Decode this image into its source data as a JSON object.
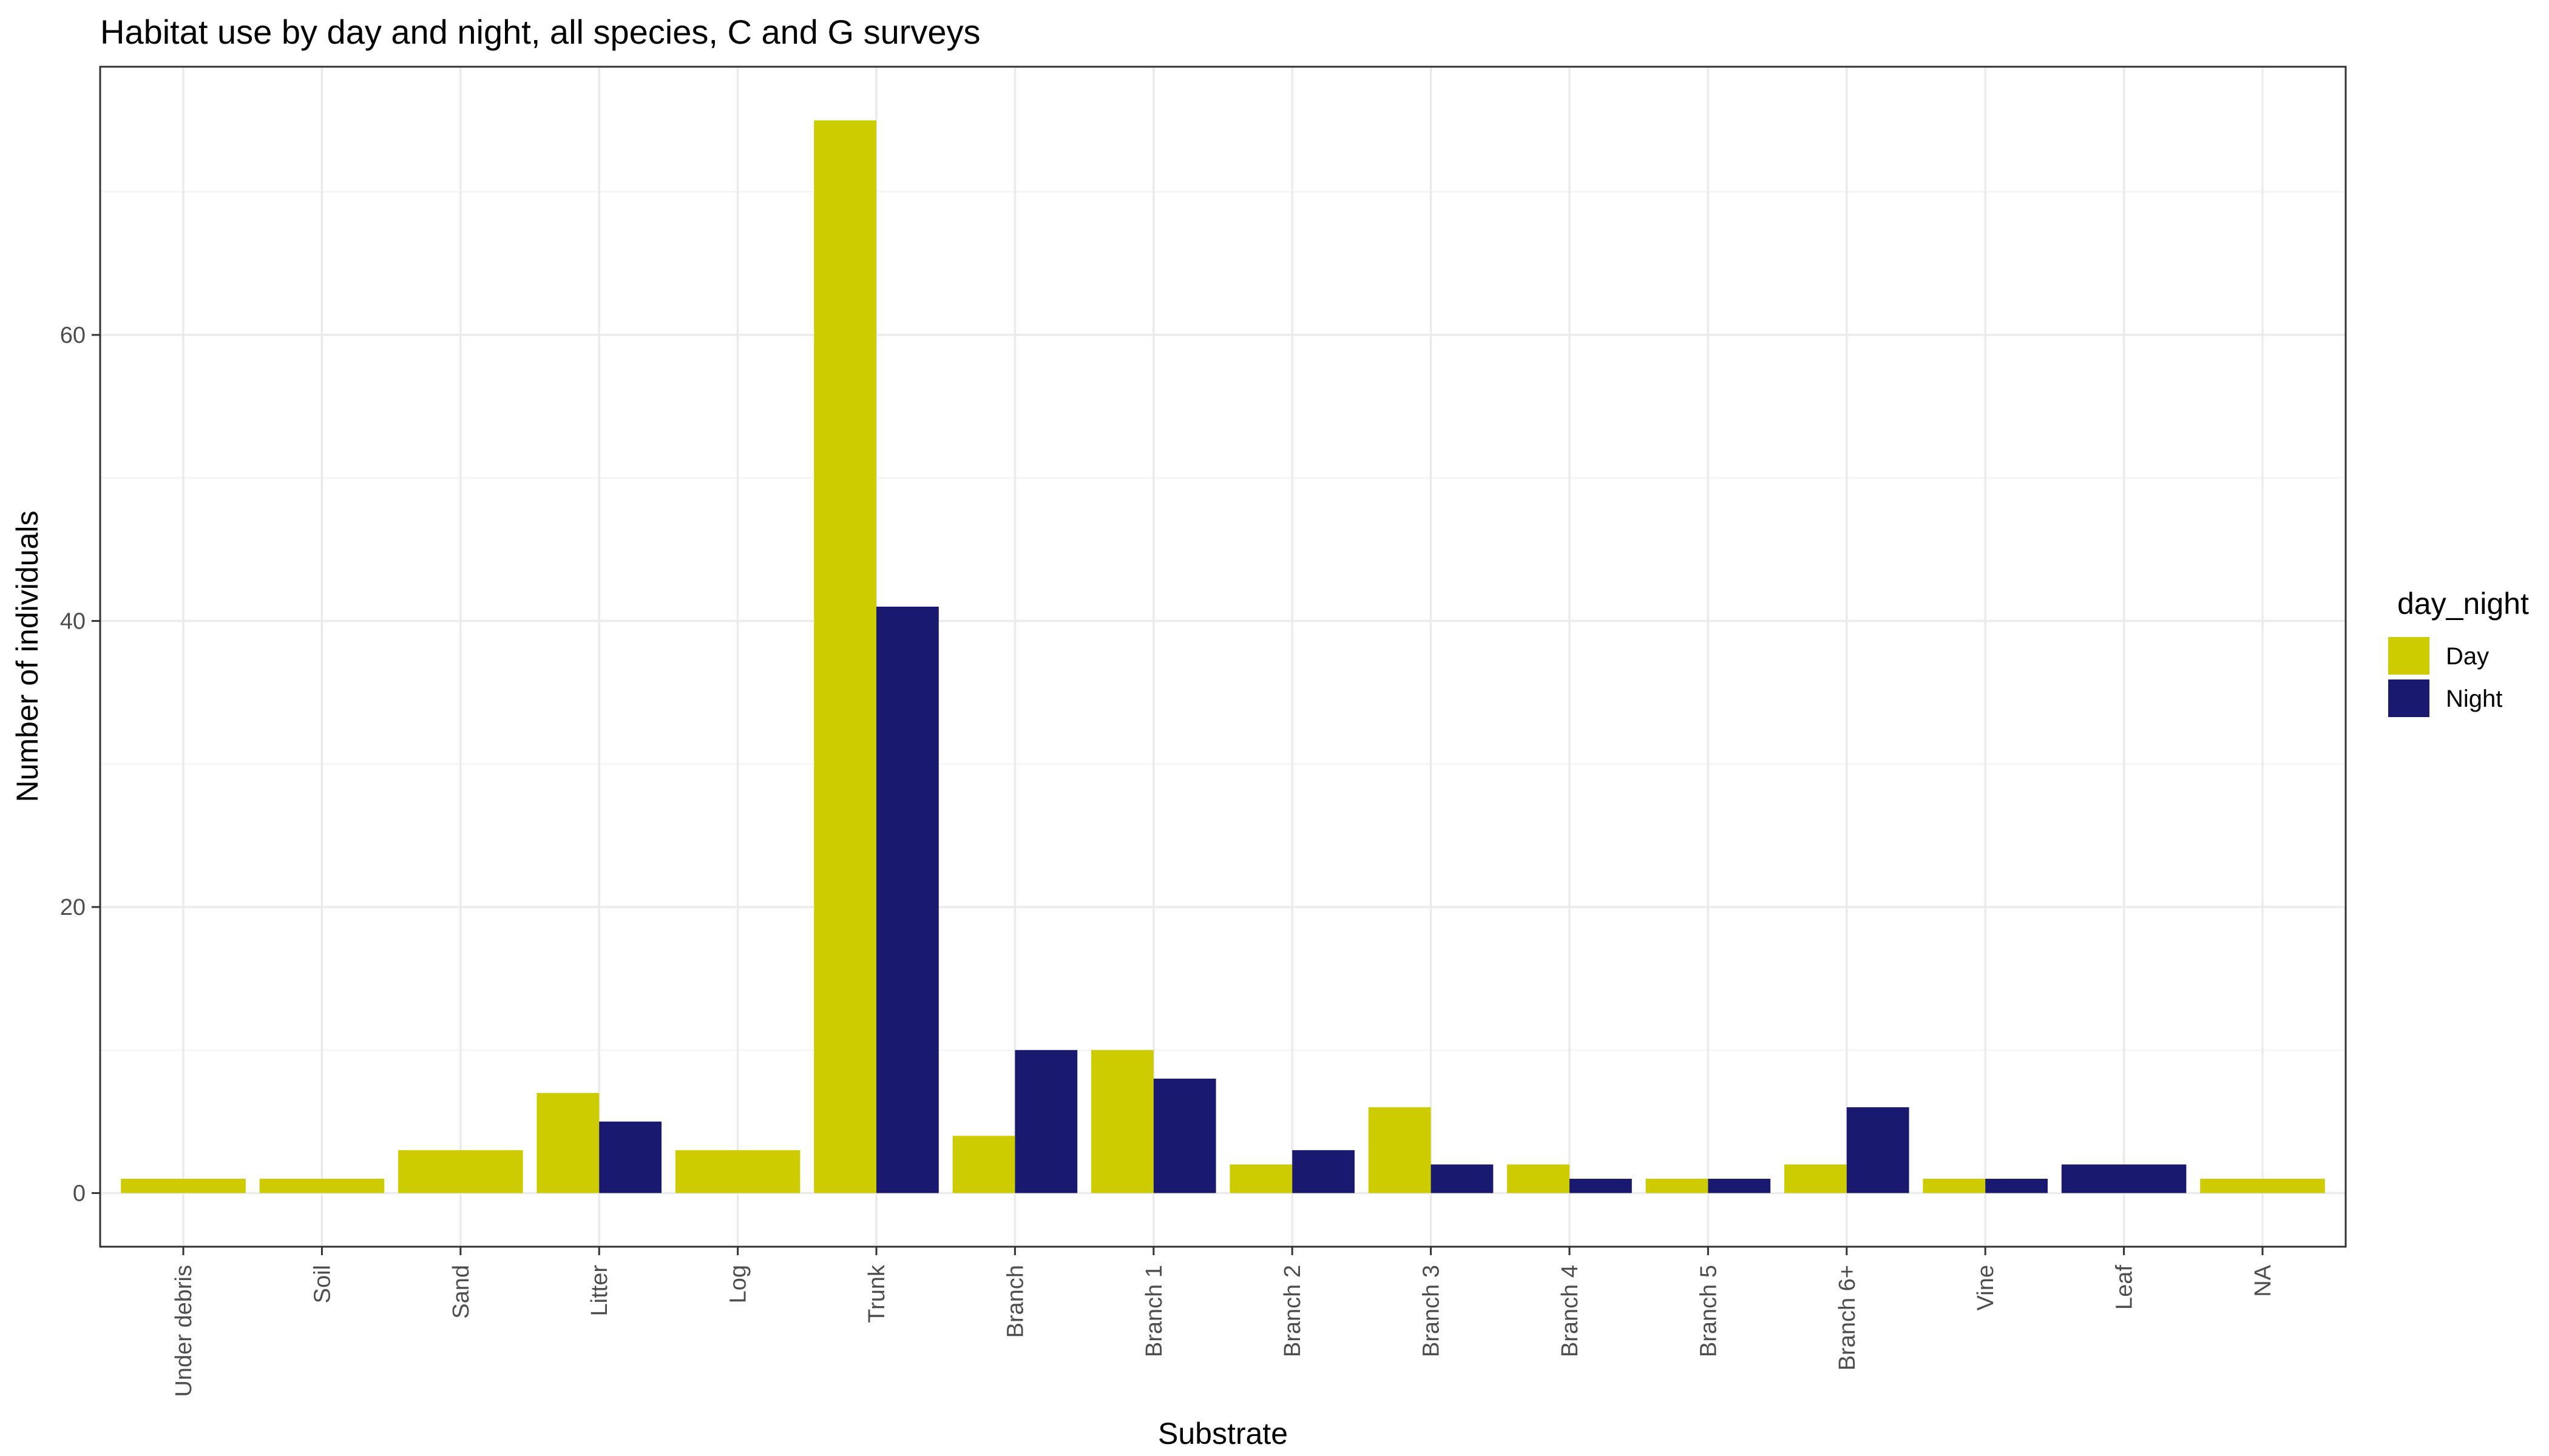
{
  "chart_data": {
    "type": "bar",
    "title": "Habitat use by day and night, all species, C and G surveys",
    "xlabel": "Substrate",
    "ylabel": "Number of individuals",
    "categories": [
      "Under debris",
      "Soil",
      "Sand",
      "Litter",
      "Log",
      "Trunk",
      "Branch",
      "Branch 1",
      "Branch 2",
      "Branch 3",
      "Branch 4",
      "Branch 5",
      "Branch 6+",
      "Vine",
      "Leaf",
      "NA"
    ],
    "series": [
      {
        "name": "Day",
        "color": "#cccc00",
        "values": [
          1,
          1,
          3,
          7,
          3,
          75,
          4,
          10,
          2,
          6,
          2,
          1,
          2,
          1,
          null,
          1
        ]
      },
      {
        "name": "Night",
        "color": "#191970",
        "values": [
          null,
          null,
          null,
          5,
          null,
          41,
          10,
          8,
          3,
          2,
          1,
          1,
          6,
          1,
          2,
          null
        ]
      }
    ],
    "ylim": [
      -3.75,
      78.75
    ],
    "yticks": [
      0,
      20,
      40,
      60
    ],
    "legend": {
      "title": "day_night",
      "position": "right"
    },
    "grid": true,
    "theme": "bw"
  }
}
